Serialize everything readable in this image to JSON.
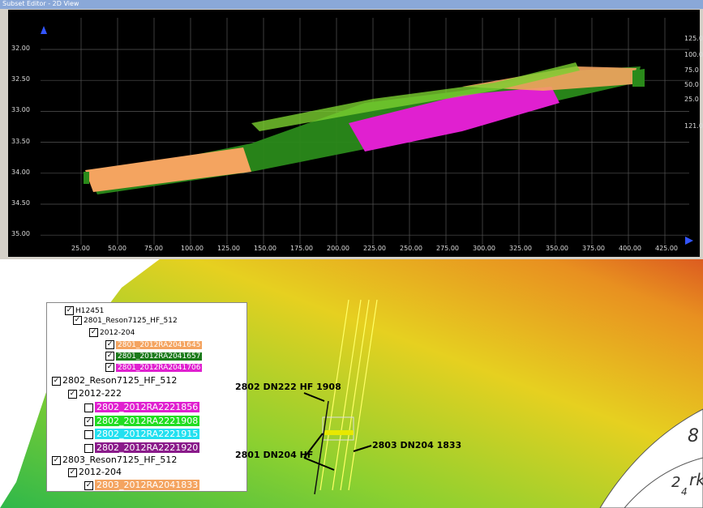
{
  "subset_editor": {
    "title": "Subset Editor - 2D View",
    "y_ticks": [
      "32.00",
      "32.50",
      "33.00",
      "33.50",
      "34.00",
      "34.50",
      "35.00"
    ],
    "x_ticks": [
      "25.00",
      "50.00",
      "75.00",
      "100.00",
      "125.00",
      "150.00",
      "175.00",
      "200.00",
      "225.00",
      "250.00",
      "275.00",
      "300.00",
      "325.00",
      "350.00",
      "375.00",
      "400.00",
      "425.00"
    ],
    "scale_ticks": [
      "125.0",
      "100.0",
      "75.0",
      "50.0",
      "25.0",
      "121.0"
    ]
  },
  "tree": {
    "nodes": [
      {
        "label": "H12451",
        "checked": true
      },
      {
        "label": "2801_Reson7125_HF_512",
        "checked": true
      },
      {
        "label": "2012-204",
        "checked": true
      },
      {
        "label": "2801_2012RA2041645",
        "checked": true,
        "color": "#f4a460"
      },
      {
        "label": "2801_2012RA2041657",
        "checked": true,
        "color": "#1a7a1a"
      },
      {
        "label": "2801_2012RA2041706",
        "checked": true,
        "color": "#e020d0"
      },
      {
        "label": "2802_Reson7125_HF_512",
        "checked": true
      },
      {
        "label": "2012-222",
        "checked": true
      },
      {
        "label": "2802_2012RA2221856",
        "checked": false,
        "color": "#e020d0"
      },
      {
        "label": "2802_2012RA2221908",
        "checked": true,
        "color": "#22dd22"
      },
      {
        "label": "2802_2012RA2221915",
        "checked": false,
        "color": "#22e0f0"
      },
      {
        "label": "2802_2012RA2221920",
        "checked": false,
        "color": "#8a1a8a"
      },
      {
        "label": "2803_Reson7125_HF_512",
        "checked": true
      },
      {
        "label": "2012-204",
        "checked": true
      },
      {
        "label": "2803_2012RA2041833",
        "checked": true,
        "color": "#f4a460"
      }
    ]
  },
  "map": {
    "annotations": [
      "2802 DN222 HF 1908",
      "2801 DN204 HF",
      "2803 DN204 1833"
    ],
    "chart_text": [
      "8",
      "2",
      "4",
      "rky."
    ]
  }
}
